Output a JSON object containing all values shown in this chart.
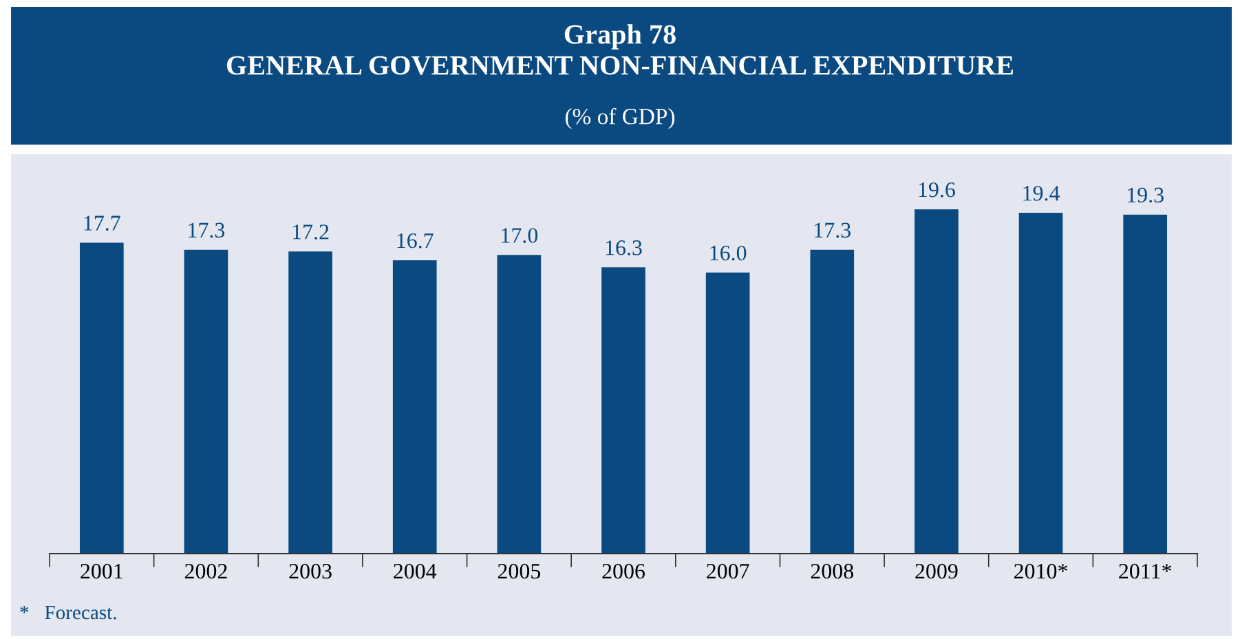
{
  "chart_data": {
    "type": "bar",
    "title": "Graph 78\nGENERAL GOVERNMENT NON-FINANCIAL EXPENDITURE",
    "subtitle": "(% of GDP)",
    "categories": [
      "2001",
      "2002",
      "2003",
      "2004",
      "2005",
      "2006",
      "2007",
      "2008",
      "2009",
      "2010*",
      "2011*"
    ],
    "values": [
      17.7,
      17.3,
      17.2,
      16.7,
      17.0,
      16.3,
      16.0,
      17.3,
      19.6,
      19.4,
      19.3
    ],
    "value_labels": [
      "17.7",
      "17.3",
      "17.2",
      "16.7",
      "17.0",
      "16.3",
      "16.0",
      "17.3",
      "19.6",
      "19.4",
      "19.3"
    ],
    "color": "#0b4a80",
    "ylim": [
      0,
      22.5
    ],
    "tick_labels": "x",
    "grid": false,
    "legend": false,
    "annotations": [
      "*   Forecast."
    ]
  }
}
